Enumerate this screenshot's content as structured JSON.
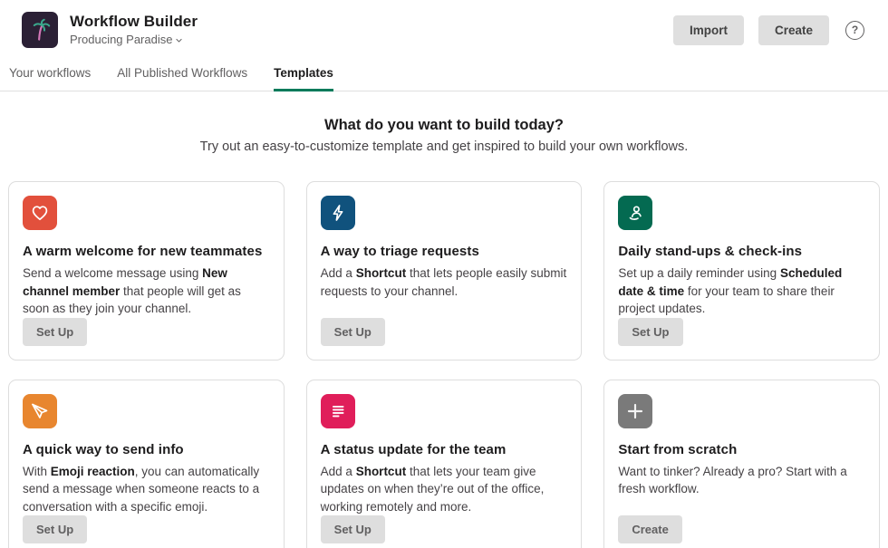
{
  "header": {
    "app_icon": "palm-tree",
    "title": "Workflow Builder",
    "workspace": "Producing Paradise",
    "import_label": "Import",
    "create_label": "Create",
    "help_label": "?"
  },
  "tabs": [
    {
      "label": "Your workflows",
      "active": false
    },
    {
      "label": "All Published Workflows",
      "active": false
    },
    {
      "label": "Templates",
      "active": true
    }
  ],
  "hero": {
    "title": "What do you want to build today?",
    "subtitle": "Try out an easy-to-customize template and get inspired to build your own workflows."
  },
  "cards": [
    {
      "icon": "heart-icon",
      "icon_color": "#e2503c",
      "title": "A warm welcome for new teammates",
      "description": [
        {
          "text": "Send a welcome message using ",
          "bold": false
        },
        {
          "text": "New channel member",
          "bold": true
        },
        {
          "text": " that people will get as soon as they join your channel.",
          "bold": false
        }
      ],
      "button": "Set Up"
    },
    {
      "icon": "lightning-icon",
      "icon_color": "#10527d",
      "title": "A way to triage requests",
      "description": [
        {
          "text": "Add a ",
          "bold": false
        },
        {
          "text": "Shortcut",
          "bold": true
        },
        {
          "text": " that lets people easily submit requests to your channel.",
          "bold": false
        }
      ],
      "button": "Set Up"
    },
    {
      "icon": "standing-person-icon",
      "icon_color": "#046a51",
      "title": "Daily stand-ups & check-ins",
      "description": [
        {
          "text": "Set up a daily reminder using ",
          "bold": false
        },
        {
          "text": "Scheduled date & time",
          "bold": true
        },
        {
          "text": " for your team to share their project updates.",
          "bold": false
        }
      ],
      "button": "Set Up"
    },
    {
      "icon": "paper-plane-icon",
      "icon_color": "#e8862f",
      "title": "A quick way to send info",
      "description": [
        {
          "text": "With ",
          "bold": false
        },
        {
          "text": "Emoji reaction",
          "bold": true
        },
        {
          "text": ", you can automatically send a message when someone reacts to a conversation with a specific emoji.",
          "bold": false
        }
      ],
      "button": "Set Up"
    },
    {
      "icon": "text-lines-icon",
      "icon_color": "#e01e5a",
      "title": "A status update for the team",
      "description": [
        {
          "text": "Add a ",
          "bold": false
        },
        {
          "text": "Shortcut",
          "bold": true
        },
        {
          "text": " that lets your team give updates on when they’re out of the office, working remotely and more.",
          "bold": false
        }
      ],
      "button": "Set Up"
    },
    {
      "icon": "plus-icon",
      "icon_color": "#7a7a7a",
      "title": "Start from scratch",
      "description": [
        {
          "text": "Want to tinker? Already a pro? Start with a fresh workflow.",
          "bold": false
        }
      ],
      "button": "Create"
    }
  ],
  "colors": {
    "accent_green": "#007a5a",
    "app_icon_bg": "#2b2035",
    "palm_leaf": "#3aa88c",
    "palm_trunk": "#d478b8"
  }
}
